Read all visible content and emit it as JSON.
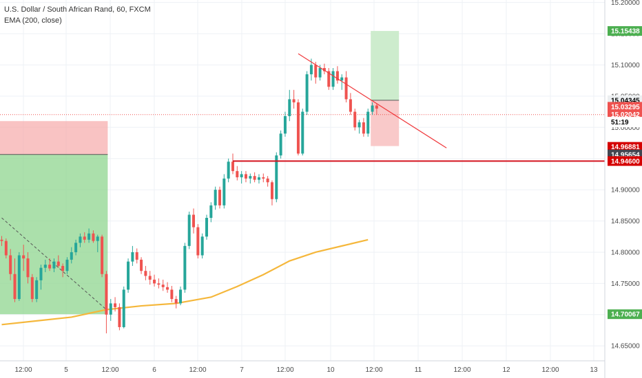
{
  "legend": {
    "symbol_line": "U.S. Dollar / South African Rand, 60, FXCM",
    "indicator_line": "EMA (200, close)"
  },
  "colors": {
    "up": "#26a69a",
    "down": "#ef5350",
    "ema": "#f5b73b",
    "trendline": "#f0393c",
    "support": "#d3121d",
    "profit_zone": "#8fd68f",
    "loss_zone": "#f7a9a9",
    "grid": "#eef1f6"
  },
  "chart_data": {
    "type": "candlestick",
    "title": "U.S. Dollar / South African Rand, 60, FXCM",
    "x_axis": {
      "tick_labels": [
        "12:00",
        "5",
        "12:00",
        "6",
        "12:00",
        "7",
        "12:00",
        "10",
        "12:00",
        "11",
        "12:00",
        "12",
        "12:00",
        "13"
      ],
      "range_bars": [
        0,
        140
      ]
    },
    "y_axis": {
      "tick_labels": [
        "14.65000",
        "14.70000",
        "14.75000",
        "14.80000",
        "14.85000",
        "14.90000",
        "14.95000",
        "15.00000",
        "15.05000",
        "15.10000",
        "15.15000",
        "15.20000"
      ],
      "range": [
        14.626,
        15.204
      ],
      "position": "right"
    },
    "series": [
      {
        "name": "USDZAR",
        "type": "candlestick",
        "ohlc": [
          [
            14.82,
            14.826,
            14.81,
            14.818
          ],
          [
            14.818,
            14.822,
            14.79,
            14.795
          ],
          [
            14.795,
            14.805,
            14.755,
            14.765
          ],
          [
            14.765,
            14.79,
            14.72,
            14.725
          ],
          [
            14.725,
            14.8,
            14.722,
            14.795
          ],
          [
            14.795,
            14.812,
            14.77,
            14.79
          ],
          [
            14.79,
            14.8,
            14.75,
            14.76
          ],
          [
            14.76,
            14.765,
            14.72,
            14.725
          ],
          [
            14.725,
            14.76,
            14.72,
            14.755
          ],
          [
            14.755,
            14.78,
            14.74,
            14.775
          ],
          [
            14.775,
            14.788,
            14.768,
            14.78
          ],
          [
            14.78,
            14.79,
            14.77,
            14.774
          ],
          [
            14.774,
            14.79,
            14.768,
            14.785
          ],
          [
            14.785,
            14.795,
            14.775,
            14.778
          ],
          [
            14.778,
            14.782,
            14.76,
            14.77
          ],
          [
            14.77,
            14.792,
            14.765,
            14.788
          ],
          [
            14.788,
            14.808,
            14.782,
            14.8
          ],
          [
            14.8,
            14.82,
            14.795,
            14.815
          ],
          [
            14.815,
            14.83,
            14.808,
            14.825
          ],
          [
            14.825,
            14.832,
            14.815,
            14.82
          ],
          [
            14.82,
            14.838,
            14.815,
            14.83
          ],
          [
            14.83,
            14.835,
            14.815,
            14.818
          ],
          [
            14.818,
            14.828,
            14.8,
            14.825
          ],
          [
            14.825,
            14.828,
            14.76,
            14.765
          ],
          [
            14.765,
            14.77,
            14.67,
            14.7
          ],
          [
            14.7,
            14.725,
            14.69,
            14.718
          ],
          [
            14.718,
            14.728,
            14.705,
            14.712
          ],
          [
            14.712,
            14.718,
            14.675,
            14.68
          ],
          [
            14.68,
            14.745,
            14.678,
            14.74
          ],
          [
            14.74,
            14.79,
            14.735,
            14.785
          ],
          [
            14.785,
            14.81,
            14.778,
            14.8
          ],
          [
            14.8,
            14.806,
            14.782,
            14.788
          ],
          [
            14.788,
            14.792,
            14.765,
            14.77
          ],
          [
            14.77,
            14.778,
            14.755,
            14.762
          ],
          [
            14.762,
            14.77,
            14.748,
            14.756
          ],
          [
            14.756,
            14.764,
            14.745,
            14.75
          ],
          [
            14.75,
            14.758,
            14.742,
            14.748
          ],
          [
            14.748,
            14.756,
            14.738,
            14.744
          ],
          [
            14.744,
            14.752,
            14.735,
            14.74
          ],
          [
            14.74,
            14.746,
            14.72,
            14.725
          ],
          [
            14.725,
            14.73,
            14.71,
            14.718
          ],
          [
            14.718,
            14.745,
            14.715,
            14.74
          ],
          [
            14.74,
            14.815,
            14.735,
            14.81
          ],
          [
            14.81,
            14.865,
            14.805,
            14.86
          ],
          [
            14.86,
            14.87,
            14.83,
            14.84
          ],
          [
            14.84,
            14.845,
            14.79,
            14.795
          ],
          [
            14.795,
            14.83,
            14.79,
            14.825
          ],
          [
            14.825,
            14.86,
            14.82,
            14.855
          ],
          [
            14.855,
            14.88,
            14.848,
            14.875
          ],
          [
            14.875,
            14.905,
            14.868,
            14.9
          ],
          [
            14.9,
            14.905,
            14.87,
            14.875
          ],
          [
            14.875,
            14.925,
            14.87,
            14.918
          ],
          [
            14.918,
            14.95,
            14.912,
            14.945
          ],
          [
            14.945,
            14.958,
            14.925,
            14.93
          ],
          [
            14.93,
            14.938,
            14.915,
            14.92
          ],
          [
            14.92,
            14.93,
            14.91,
            14.925
          ],
          [
            14.925,
            14.93,
            14.912,
            14.918
          ],
          [
            14.918,
            14.926,
            14.91,
            14.922
          ],
          [
            14.922,
            14.928,
            14.912,
            14.916
          ],
          [
            14.916,
            14.925,
            14.91,
            14.92
          ],
          [
            14.92,
            14.926,
            14.912,
            14.918
          ],
          [
            14.918,
            14.922,
            14.905,
            14.912
          ],
          [
            14.912,
            14.915,
            14.875,
            14.885
          ],
          [
            14.885,
            14.96,
            14.88,
            14.955
          ],
          [
            14.955,
            14.995,
            14.95,
            14.99
          ],
          [
            14.99,
            15.025,
            14.985,
            15.018
          ],
          [
            15.018,
            15.06,
            15.01,
            15.045
          ],
          [
            15.045,
            15.06,
            15.03,
            15.04
          ],
          [
            15.04,
            15.045,
            14.955,
            14.958
          ],
          [
            14.958,
            15.03,
            14.955,
            15.025
          ],
          [
            15.025,
            15.09,
            15.02,
            15.085
          ],
          [
            15.085,
            15.11,
            15.075,
            15.1
          ],
          [
            15.1,
            15.105,
            15.07,
            15.08
          ],
          [
            15.08,
            15.1,
            15.075,
            15.095
          ],
          [
            15.095,
            15.102,
            15.085,
            15.09
          ],
          [
            15.09,
            15.095,
            15.06,
            15.065
          ],
          [
            15.065,
            15.095,
            15.06,
            15.09
          ],
          [
            15.09,
            15.098,
            15.07,
            15.075
          ],
          [
            15.075,
            15.085,
            15.06,
            15.08
          ],
          [
            15.08,
            15.09,
            15.04,
            15.045
          ],
          [
            15.045,
            15.055,
            15.02,
            15.025
          ],
          [
            15.025,
            15.03,
            14.995,
            15.0
          ],
          [
            15.0,
            15.012,
            14.99,
            15.008
          ],
          [
            15.008,
            15.015,
            14.985,
            14.99
          ],
          [
            14.99,
            15.03,
            14.985,
            15.025
          ],
          [
            15.025,
            15.04,
            15.02,
            15.035
          ],
          [
            15.035,
            15.038,
            15.02,
            15.03
          ]
        ]
      },
      {
        "name": "EMA (200, close)",
        "type": "line",
        "values": [
          [
            0,
            14.684
          ],
          [
            8,
            14.69
          ],
          [
            16,
            14.696
          ],
          [
            24,
            14.708
          ],
          [
            32,
            14.714
          ],
          [
            40,
            14.718
          ],
          [
            48,
            14.728
          ],
          [
            54,
            14.745
          ],
          [
            60,
            14.764
          ],
          [
            66,
            14.786
          ],
          [
            72,
            14.8
          ],
          [
            78,
            14.81
          ],
          [
            84,
            14.82
          ]
        ]
      }
    ],
    "drawings": {
      "support_line": {
        "y": 14.946,
        "x_range": [
          53,
          140
        ]
      },
      "descending_trendline": [
        [
          68,
          15.118
        ],
        [
          102,
          14.967
        ]
      ],
      "dashed_trendline": [
        [
          0,
          14.855
        ],
        [
          24,
          14.708
        ]
      ],
      "long_position_left": {
        "x_range": [
          0,
          24
        ],
        "entry": 14.95654,
        "target": 14.70067,
        "stop": 15.01
      },
      "short_position_right": {
        "x_range": [
          84,
          90
        ],
        "entry": 15.04345,
        "target": 15.15438,
        "stop": 14.97
      }
    },
    "price_tags": [
      {
        "label": "15.15438",
        "value": 15.15438,
        "bg": "#4caf50",
        "fg": "#ffffff"
      },
      {
        "label": "15.04345",
        "value": 15.04345,
        "bg": "#eceff1",
        "fg": "#000000"
      },
      {
        "label": "15.03295",
        "value": 15.03295,
        "bg": "#ef5350",
        "fg": "#ffffff"
      },
      {
        "label": "15.02042",
        "value": 15.02042,
        "bg": "#ef5350",
        "fg": "#ffffff"
      },
      {
        "label": "51:19",
        "value": 15.0085,
        "bg": "#ffffff",
        "fg": "#000000"
      },
      {
        "label": "14.96881",
        "value": 14.96881,
        "bg": "#d50000",
        "fg": "#ffffff"
      },
      {
        "label": "14.95654",
        "value": 14.95654,
        "bg": "#434651",
        "fg": "#ffffff"
      },
      {
        "label": "14.94600",
        "value": 14.946,
        "bg": "#d50000",
        "fg": "#ffffff"
      },
      {
        "label": "14.70067",
        "value": 14.70067,
        "bg": "#4caf50",
        "fg": "#ffffff"
      }
    ],
    "current_price_line": 15.02042,
    "grid": true,
    "legend_position": "top-left"
  }
}
